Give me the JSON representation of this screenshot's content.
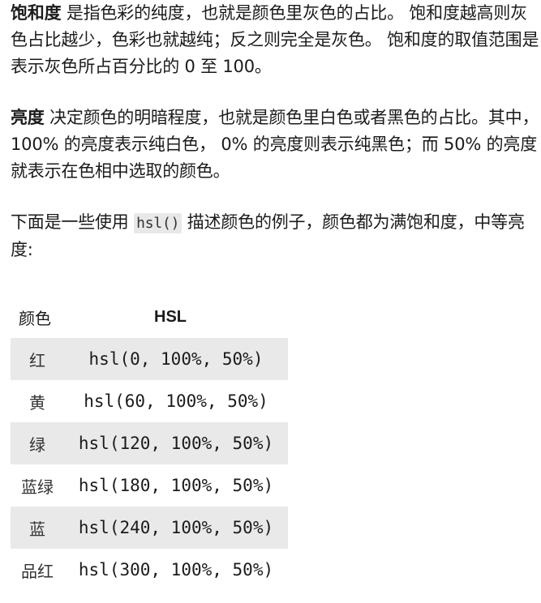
{
  "paragraph_saturation": {
    "term": "饱和度",
    "text": " 是指色彩的纯度，也就是颜色里灰色的占比。 饱和度越高则灰色占比越少，色彩也就越纯；反之则完全是灰色。 饱和度的取值范围是表示灰色所占百分比的 0 至 100。"
  },
  "paragraph_lightness": {
    "term": "亮度",
    "text": " 决定颜色的明暗程度，也就是颜色里白色或者黑色的占比。其中，100% 的亮度表示纯白色， 0% 的亮度则表示纯黑色；而 50% 的亮度就表示在色相中选取的颜色。"
  },
  "paragraph_examples": {
    "before": "下面是一些使用 ",
    "code": "hsl()",
    "after": " 描述颜色的例子，颜色都为满饱和度，中等亮度:"
  },
  "table": {
    "headers": [
      "颜色",
      "HSL"
    ],
    "rows": [
      {
        "name": "红",
        "hsl": "hsl(0, 100%, 50%)"
      },
      {
        "name": "黄",
        "hsl": "hsl(60, 100%, 50%)"
      },
      {
        "name": "绿",
        "hsl": "hsl(120, 100%, 50%)"
      },
      {
        "name": "蓝绿",
        "hsl": "hsl(180, 100%, 50%)"
      },
      {
        "name": "蓝",
        "hsl": "hsl(240, 100%, 50%)"
      },
      {
        "name": "品红",
        "hsl": "hsl(300, 100%, 50%)"
      }
    ]
  }
}
